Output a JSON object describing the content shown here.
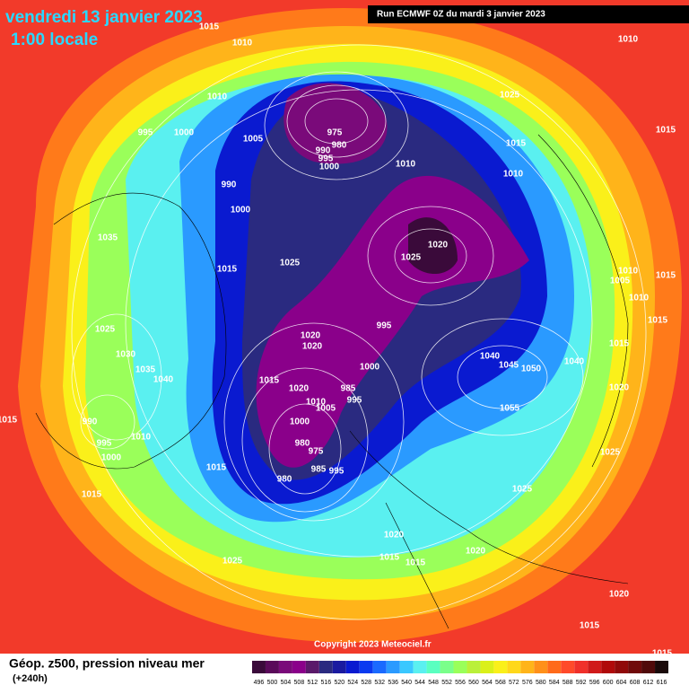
{
  "header": {
    "date": "vendredi 13 janvier 2023",
    "time": "1:00 locale",
    "run": "Run ECMWF 0Z du mardi 3 janvier 2023"
  },
  "map": {
    "pressure_labels": [
      "1015",
      "1010",
      "1010",
      "995",
      "1000",
      "1005",
      "975",
      "980",
      "990",
      "995",
      "1000",
      "1010",
      "1025",
      "1015",
      "1010",
      "1015",
      "1010",
      "990",
      "1000",
      "1020",
      "1025",
      "1015",
      "1025",
      "1010",
      "1005",
      "1010",
      "1015",
      "1015",
      "1035",
      "1025",
      "1030",
      "1035",
      "1040",
      "995",
      "1020",
      "1020",
      "1000",
      "1015",
      "1020",
      "1040",
      "1045",
      "1050",
      "1040",
      "1020",
      "1015",
      "985",
      "995",
      "1010",
      "1005",
      "1000",
      "1055",
      "1025",
      "980",
      "975",
      "985",
      "995",
      "980",
      "1015",
      "1015",
      "995",
      "1000",
      "1010",
      "1025",
      "1025",
      "1020",
      "1015",
      "1015",
      "1020",
      "1020",
      "1015",
      "1015",
      "1015",
      "990"
    ]
  },
  "copyright": "Copyright 2023 Meteociel.fr",
  "legend": {
    "title": "Géop. z500, pression niveau mer",
    "subtitle": "(+240h)",
    "scale": [
      496,
      500,
      504,
      508,
      512,
      516,
      520,
      524,
      528,
      532,
      536,
      540,
      544,
      548,
      552,
      556,
      560,
      564,
      568,
      572,
      576,
      580,
      584,
      588,
      592,
      596,
      600,
      604,
      608,
      612,
      616
    ],
    "colors": [
      "#3a0a3a",
      "#5a0a5a",
      "#7a0a7a",
      "#8a008a",
      "#5a1a6a",
      "#2a2a80",
      "#1a1aa0",
      "#0a1ad0",
      "#0a3af0",
      "#1a6aff",
      "#2a9aff",
      "#3ac8ff",
      "#5af0f0",
      "#5affc0",
      "#7aff8a",
      "#9aff5a",
      "#baf03a",
      "#daf01a",
      "#faf01a",
      "#ffd81a",
      "#ffb41a",
      "#ff901a",
      "#ff6a1a",
      "#ff4a2a",
      "#f0302a",
      "#d01a1a",
      "#b00a0a",
      "#900a0a",
      "#700a0a",
      "#500a0a",
      "#1a0a0a"
    ]
  }
}
